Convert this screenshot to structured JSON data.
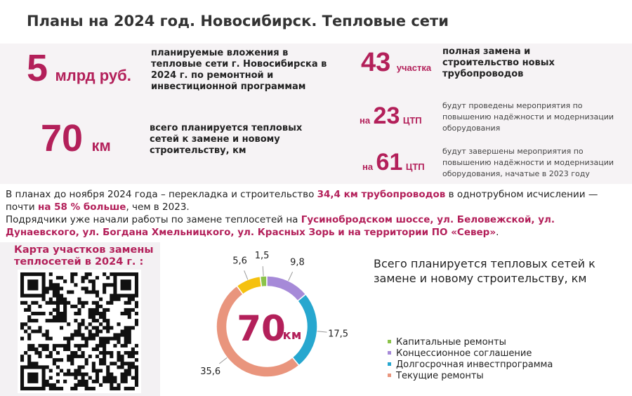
{
  "header": {
    "title": "Планы на 2024 год. Новосибирск. Тепловые сети"
  },
  "stats": [
    {
      "number": "5",
      "unit": "млрд руб.",
      "text": "планируемые вложения в тепловые сети г. Новосибирска в 2024 г. по ремонтной и инвестиционной программам"
    },
    {
      "number": "70",
      "unit": "км",
      "text": "всего планируется тепловых сетей к замене и новому строительству, км"
    },
    {
      "number": "43",
      "unit": "участка",
      "text": "полная замена и строительство новых трубопроводов"
    },
    {
      "prefix": "на",
      "number": "23",
      "unit": "ЦТП",
      "text": "будут проведены мероприятия по повышению надёжности и модернизации оборудования"
    },
    {
      "prefix": "на",
      "number": "61",
      "unit": "ЦТП",
      "text": "будут завершены мероприятия по повышению надёжности и модернизации оборудования, начатые в 2023 году"
    }
  ],
  "paragraphs": [
    [
      "В планах до ноября 2024 года – перекладка и строительство ",
      "34,4 км трубопроводов",
      " в однотрубном исчислении — почти ",
      "на 58 % больше",
      ", чем в 2023."
    ],
    [
      "Подрядчики уже начали работы по замене теплосетей на ",
      "Гусинобродском шоссе,  ул. Беловежской, ул. Дунаевского, ул. Богдана Хмельницкого, ул. Красных Зорь и на территории ПО «Север»",
      "."
    ]
  ],
  "map": {
    "caption": "Карта участков замены теплосетей в 2024 г. :"
  },
  "chart_data": {
    "type": "donut",
    "title": "Всего планируется тепловых сетей к замене и новому строительству, км",
    "center_number": "70",
    "center_unit": "км",
    "categories": [
      "Капитальные ремонты",
      "Концессионное соглашение",
      "Долгосрочная инвестпрограмма",
      "Текущие ремонты",
      null
    ],
    "values": [
      1.5,
      9.8,
      17.5,
      35.6,
      5.6
    ],
    "value_labels": [
      "1,5",
      "9,8",
      "17,5",
      "35,6",
      "5,6"
    ],
    "colors": [
      "#8bc34a",
      "#a68ad8",
      "#27a7cf",
      "#e9957d",
      "#f5c10f"
    ]
  }
}
